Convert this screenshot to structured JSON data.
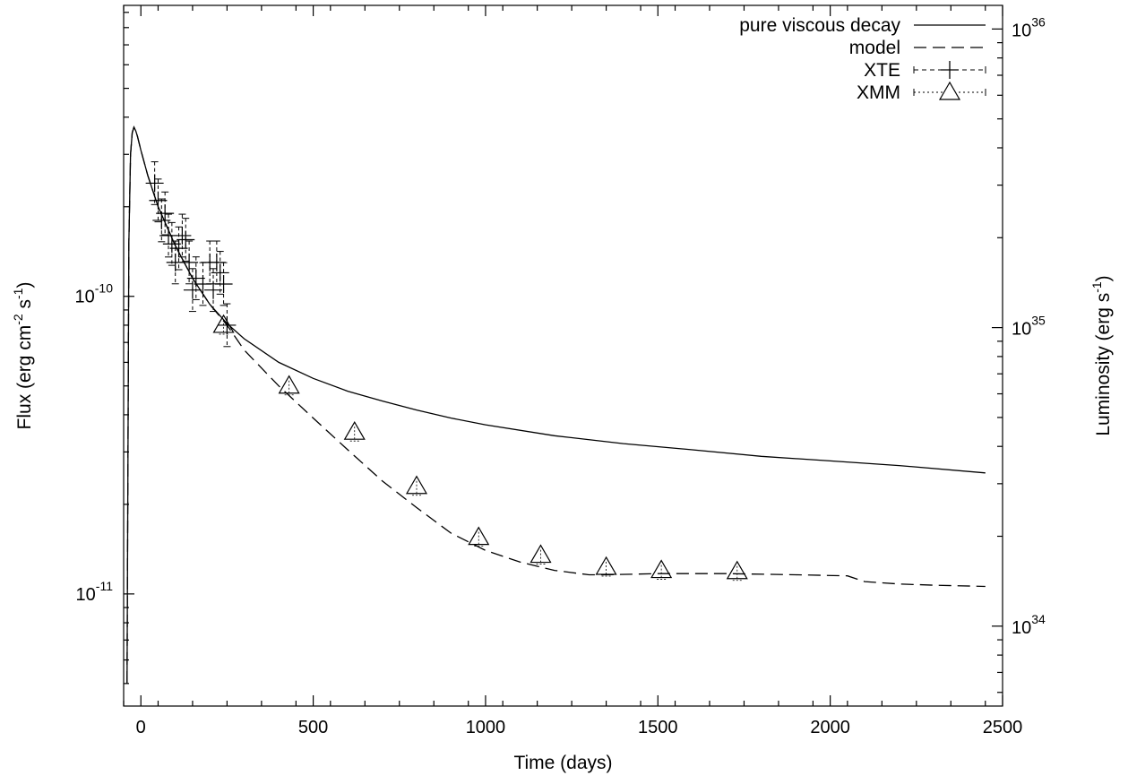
{
  "chart_data": {
    "type": "line",
    "title": "",
    "xlabel": "Time (days)",
    "ylabel_left_parts": [
      "Flux (erg cm",
      "-2",
      " s",
      "-1",
      ")"
    ],
    "ylabel_right_parts": [
      "Luminosity (erg s",
      "-1",
      ")"
    ],
    "x_scale": "linear",
    "y_scale": "log",
    "xlim": [
      -50,
      2500
    ],
    "ylim": [
      4.2e-12,
      9.5e-10
    ],
    "y2lim": [
      5.4e+33,
      1.2e+36
    ],
    "x_ticks": [
      0,
      500,
      1000,
      1500,
      2000,
      2500
    ],
    "y_ticks": [
      {
        "value": 1e-10,
        "base": "10",
        "exp": "-10"
      },
      {
        "value": 1e-11,
        "base": "10",
        "exp": "-11"
      }
    ],
    "y2_ticks": [
      {
        "value": 1e+34,
        "base": "10",
        "exp": "34"
      },
      {
        "value": 1e+35,
        "base": "10",
        "exp": "35"
      },
      {
        "value": 1e+36,
        "base": "10",
        "exp": "36"
      }
    ],
    "legend_position": "top-right",
    "series": [
      {
        "name": "pure viscous decay",
        "style": "solid",
        "x": [
          -40,
          -35,
          -30,
          -25,
          -20,
          -15,
          -10,
          0,
          20,
          50,
          100,
          150,
          200,
          250,
          300,
          400,
          500,
          600,
          700,
          800,
          900,
          1000,
          1200,
          1400,
          1600,
          1800,
          2000,
          2200,
          2450
        ],
        "y": [
          5e-12,
          1.5e-10,
          3e-10,
          3.55e-10,
          3.7e-10,
          3.6e-10,
          3.45e-10,
          3.1e-10,
          2.55e-10,
          2e-10,
          1.48e-10,
          1.15e-10,
          9.4e-11,
          8.1e-11,
          7.2e-11,
          6e-11,
          5.3e-11,
          4.8e-11,
          4.45e-11,
          4.15e-11,
          3.9e-11,
          3.7e-11,
          3.4e-11,
          3.2e-11,
          3.05e-11,
          2.9e-11,
          2.8e-11,
          2.7e-11,
          2.55e-11
        ]
      },
      {
        "name": "model",
        "style": "dashed",
        "x": [
          -40,
          -35,
          -30,
          -25,
          -20,
          -15,
          -10,
          0,
          20,
          50,
          100,
          150,
          200,
          250,
          300,
          400,
          500,
          600,
          700,
          800,
          900,
          1000,
          1100,
          1200,
          1300,
          1350,
          1500,
          1700,
          1900,
          2050,
          2100,
          2200,
          2300,
          2450
        ],
        "y": [
          5e-12,
          1.5e-10,
          3e-10,
          3.55e-10,
          3.7e-10,
          3.6e-10,
          3.45e-10,
          3.1e-10,
          2.55e-10,
          2e-10,
          1.48e-10,
          1.15e-10,
          9.4e-11,
          8e-11,
          6.6e-11,
          5e-11,
          3.9e-11,
          3.05e-11,
          2.4e-11,
          1.95e-11,
          1.6e-11,
          1.4e-11,
          1.28e-11,
          1.2e-11,
          1.16e-11,
          1.16e-11,
          1.17e-11,
          1.17e-11,
          1.16e-11,
          1.15e-11,
          1.1e-11,
          1.08e-11,
          1.07e-11,
          1.06e-11
        ]
      },
      {
        "name": "XTE",
        "style": "points-errorbars",
        "marker": "plus",
        "x": [
          40,
          50,
          60,
          70,
          80,
          90,
          100,
          110,
          120,
          130,
          140,
          150,
          160,
          180,
          200,
          210,
          220,
          230,
          240,
          250
        ],
        "y": [
          2.4e-10,
          2.1e-10,
          1.8e-10,
          1.9e-10,
          1.6e-10,
          1.5e-10,
          1.3e-10,
          1.45e-10,
          1.6e-10,
          1.55e-10,
          1.3e-10,
          1.05e-10,
          1.15e-10,
          1.1e-10,
          1.3e-10,
          1.05e-10,
          1.3e-10,
          1.2e-10,
          1.1e-10,
          8e-11
        ]
      },
      {
        "name": "XMM",
        "style": "points-errorbars",
        "marker": "triangle",
        "x": [
          240,
          430,
          620,
          800,
          980,
          1160,
          1350,
          1510,
          1730
        ],
        "y": [
          8e-11,
          5e-11,
          3.5e-11,
          2.3e-11,
          1.55e-11,
          1.35e-11,
          1.23e-11,
          1.2e-11,
          1.19e-11
        ]
      }
    ]
  }
}
